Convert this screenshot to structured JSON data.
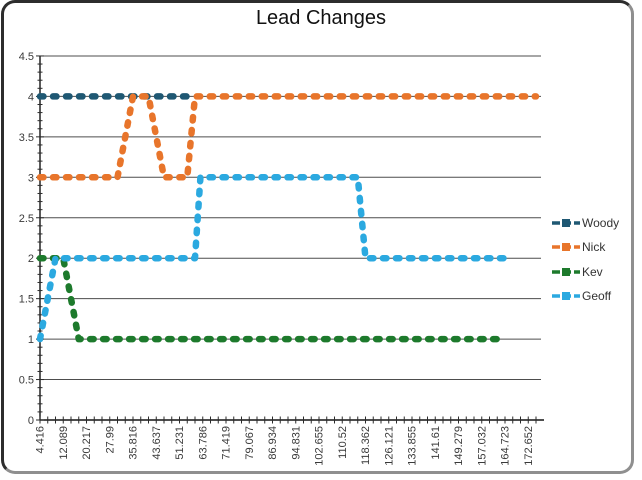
{
  "title": "Lead Changes",
  "chart_data": {
    "type": "line",
    "title": "Lead Changes",
    "x_axis_type": "category",
    "x_tick_labels": [
      "4.416",
      "12.089",
      "20.217",
      "27.99",
      "35.816",
      "43.637",
      "51.231",
      "63.786",
      "71.419",
      "79.067",
      "86.934",
      "94.831",
      "102.655",
      "110.52",
      "118.362",
      "126.121",
      "133.855",
      "141.61",
      "149.279",
      "157.032",
      "164.723",
      "172.652"
    ],
    "label_every_n_ticks": 3,
    "total_ticks": 65,
    "y_tick_labels": [
      "0",
      "0.5",
      "1",
      "1.5",
      "2",
      "2.5",
      "3",
      "3.5",
      "4",
      "4.5"
    ],
    "ylim": [
      0,
      4.5
    ],
    "grid": true,
    "legend_position": "right",
    "line_style": "thick-dashed-with-square-markers",
    "series": [
      {
        "name": "Woody",
        "color": "#1F5873",
        "points": [
          [
            0,
            4
          ],
          [
            20,
            4
          ]
        ]
      },
      {
        "name": "Nick",
        "color": "#E8752B",
        "points": [
          [
            0,
            3
          ],
          [
            10,
            3
          ],
          [
            12,
            4
          ],
          [
            14,
            4
          ],
          [
            16,
            3
          ],
          [
            19,
            3
          ],
          [
            20,
            4
          ],
          [
            64,
            4
          ]
        ]
      },
      {
        "name": "Kev",
        "color": "#1D7A2C",
        "points": [
          [
            0,
            2
          ],
          [
            3,
            2
          ],
          [
            5,
            1
          ],
          [
            60,
            1
          ]
        ]
      },
      {
        "name": "Geoff",
        "color": "#2BA9E0",
        "points": [
          [
            0,
            1
          ],
          [
            2,
            2
          ],
          [
            20,
            2
          ],
          [
            20.7,
            3
          ],
          [
            41,
            3
          ],
          [
            42,
            2
          ],
          [
            61,
            2
          ]
        ]
      }
    ]
  }
}
